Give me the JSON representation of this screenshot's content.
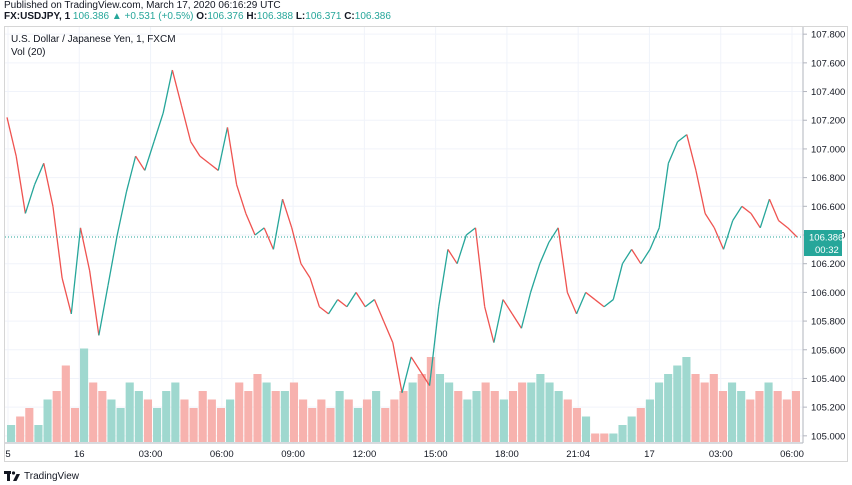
{
  "header": {
    "published": "Published on TradingView.com, March 17, 2020 06:16:29 UTC",
    "symbol": "FX:USDJPY, 1",
    "last": "106.386",
    "change_arrow": "▲",
    "change": "+0.531 (+0.5%)",
    "open_label": "O:",
    "open": "106.376",
    "high_label": "H:",
    "high": "106.388",
    "low_label": "L:",
    "low": "106.371",
    "close_label": "C:",
    "close": "106.386"
  },
  "legend": {
    "title": "U.S. Dollar / Japanese Yen, 1, FXCM",
    "volume": "Vol (20)"
  },
  "price_badge": {
    "price": "106.386",
    "countdown": "00:32"
  },
  "footer": {
    "brand": "TradingView"
  },
  "colors": {
    "up": "#26a69a",
    "down": "#ef5350",
    "up_vol": "#9fd8cf",
    "down_vol": "#f7b2ae",
    "last_line": "#26a69a",
    "grid": "#f0f3fa",
    "axis_text": "#131722"
  },
  "chart_data": {
    "type": "line",
    "title": "U.S. Dollar / Japanese Yen, 1, FXCM",
    "xlabel": "",
    "ylabel": "",
    "x_ticks": [
      "5",
      "16",
      "03:00",
      "06:00",
      "09:00",
      "12:00",
      "15:00",
      "18:00",
      "21:04",
      "17",
      "03:00",
      "06:00"
    ],
    "y_ticks": [
      "107.800",
      "107.600",
      "107.400",
      "107.200",
      "107.000",
      "106.800",
      "106.600",
      "106.400",
      "106.200",
      "106.000",
      "105.800",
      "105.600",
      "105.400",
      "105.200",
      "105.000"
    ],
    "ylim": [
      104.95,
      107.85
    ],
    "last_price": 106.386,
    "grid": true,
    "series": [
      {
        "values": [
          107.22,
          106.95,
          106.55,
          106.75,
          106.9,
          106.6,
          106.1,
          105.85,
          106.45,
          106.15,
          105.7,
          106.05,
          106.4,
          106.7,
          106.95,
          106.85,
          107.05,
          107.25,
          107.55,
          107.3,
          107.05,
          106.95,
          106.9,
          106.85,
          107.15,
          106.75,
          106.55,
          106.4,
          106.45,
          106.3,
          106.65,
          106.45,
          106.2,
          106.1,
          105.9,
          105.85,
          105.95,
          105.9,
          106.0,
          105.9,
          105.95,
          105.8,
          105.65,
          105.3,
          105.55,
          105.45,
          105.35,
          105.9,
          106.3,
          106.2,
          106.4,
          106.45,
          105.9,
          105.65,
          105.95,
          105.85,
          105.75,
          106.0,
          106.2,
          106.35,
          106.45,
          106.0,
          105.85,
          106.0,
          105.95,
          105.9,
          105.95,
          106.2,
          106.3,
          106.2,
          106.3,
          106.45,
          106.9,
          107.05,
          107.1,
          106.85,
          106.55,
          106.45,
          106.3,
          106.5,
          106.6,
          106.55,
          106.45,
          106.65,
          106.5,
          106.45,
          106.386
        ]
      }
    ],
    "volume": {
      "name": "Vol (20)",
      "values": [
        0.1,
        0.15,
        0.2,
        0.1,
        0.25,
        0.3,
        0.45,
        0.2,
        0.55,
        0.35,
        0.3,
        0.25,
        0.2,
        0.35,
        0.3,
        0.25,
        0.2,
        0.3,
        0.35,
        0.25,
        0.2,
        0.3,
        0.25,
        0.2,
        0.25,
        0.35,
        0.3,
        0.4,
        0.35,
        0.3,
        0.3,
        0.35,
        0.25,
        0.2,
        0.25,
        0.2,
        0.3,
        0.25,
        0.2,
        0.25,
        0.3,
        0.2,
        0.25,
        0.3,
        0.35,
        0.4,
        0.5,
        0.4,
        0.35,
        0.3,
        0.25,
        0.3,
        0.35,
        0.3,
        0.25,
        0.3,
        0.35,
        0.35,
        0.4,
        0.35,
        0.3,
        0.25,
        0.2,
        0.15,
        0.05,
        0.05,
        0.05,
        0.1,
        0.15,
        0.2,
        0.25,
        0.35,
        0.4,
        0.45,
        0.5,
        0.4,
        0.35,
        0.4,
        0.3,
        0.35,
        0.3,
        0.25,
        0.3,
        0.35,
        0.3,
        0.25,
        0.3
      ]
    }
  }
}
